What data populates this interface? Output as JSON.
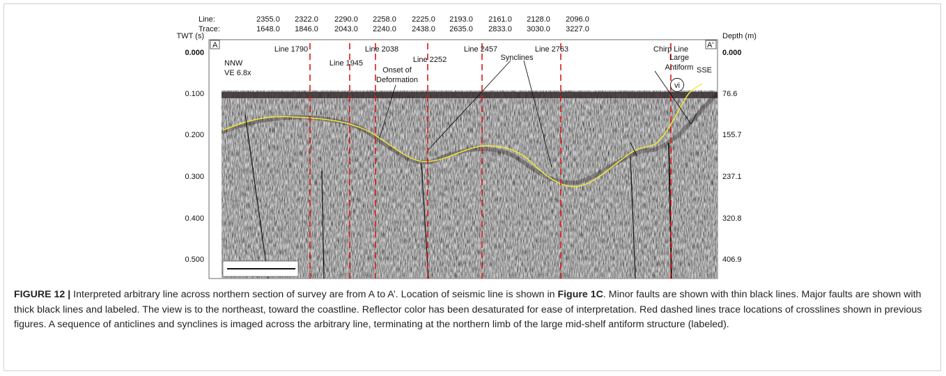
{
  "figure": {
    "top_axis": {
      "line_label": "Line:",
      "trace_label": "Trace:",
      "lines": [
        "2355.0",
        "2322.0",
        "2290.0",
        "2258.0",
        "2225.0",
        "2193.0",
        "2161.0",
        "2128.0",
        "2096.0"
      ],
      "traces": [
        "1648.0",
        "1846.0",
        "2043.0",
        "2240.0",
        "2438.0",
        "2635.0",
        "2833.0",
        "3030.0",
        "3227.0"
      ]
    },
    "left_axis": {
      "title": "TWT (s)",
      "ticks": [
        "0.000",
        "0.100",
        "0.200",
        "0.300",
        "0.400",
        "0.500"
      ]
    },
    "right_axis": {
      "title": "Depth (m)",
      "ticks": [
        "0.000",
        "76.6",
        "155.7",
        "237.1",
        "320.8",
        "406.9"
      ]
    },
    "panel_labels": {
      "start": "A",
      "end": "A'"
    },
    "crosslines": [
      "Line 1790",
      "Line 1945",
      "Line 2038",
      "Line 2252",
      "Line 2457",
      "Line 2763",
      "Chirp Line"
    ],
    "annotations": {
      "start_direction": "NNW",
      "exaggeration": "VE 6.8x",
      "onset_1": "Onset of",
      "onset_2": "Deformation",
      "synclines": "Synclines",
      "antiform_1": "Large",
      "antiform_2": "Antiform",
      "end_direction": "SSE",
      "fault": "vi"
    }
  },
  "caption": {
    "label": "FIGURE 12 |",
    "text_1": " Interpreted arbitrary line across northern section of survey are from A to A’. Location of seismic line is shown in ",
    "figure_ref": "Figure 1C",
    "text_2": ". Minor faults are shown with thin black lines. Major faults are shown with thick black lines and labeled. The view is to the northeast, toward the coastline. Reflector color has been desaturated for ease of interpretation. Red dashed lines trace locations of crosslines shown in previous figures. A sequence of anticlines and synclines is imaged across the arbitrary line, terminating at the northern limb of the large mid-shelf antiform structure (labeled)."
  }
}
